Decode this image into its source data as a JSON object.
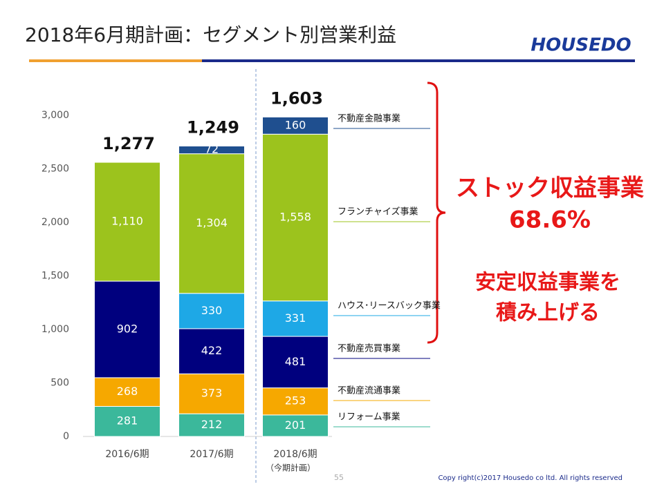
{
  "header": {
    "title": "2018年6月期計画：セグメント別営業利益",
    "logo": "HOUSEDO"
  },
  "chart_data": {
    "type": "stacked-bar",
    "categories": [
      "2016/6期",
      "2017/6期",
      "2018/6期"
    ],
    "category_note": "（今期計画）",
    "ylim": [
      0,
      3000
    ],
    "yticks": [
      0,
      500,
      {
        "value": 1000,
        "label": "1,000"
      },
      {
        "value": 1500,
        "label": "1,500"
      },
      {
        "value": 2000,
        "label": "2,000"
      },
      {
        "value": 2500,
        "label": "2,500"
      },
      {
        "value": 3000,
        "label": "3,000"
      }
    ],
    "series": [
      {
        "name": "リフォーム事業",
        "color": "#3bb89b",
        "values": [
          281,
          212,
          201
        ]
      },
      {
        "name": "不動産流通事業",
        "color": "#f6a800",
        "values": [
          268,
          373,
          253
        ]
      },
      {
        "name": "不動産売買事業",
        "color": "#00007e",
        "values": [
          902,
          422,
          481
        ]
      },
      {
        "name": "ハウス･リースバック事業",
        "color": "#1ea8e6",
        "values": [
          null,
          330,
          331
        ]
      },
      {
        "name": "フランチャイズ事業",
        "color": "#9cc31d",
        "values": [
          1110,
          1304,
          1558
        ],
        "value_labels": [
          "1,110",
          "1,304",
          "1,558"
        ]
      },
      {
        "name": "不動産金融事業",
        "color": "#1f4f8f",
        "values": [
          null,
          72,
          160
        ]
      }
    ],
    "totals": {
      "values": [
        1277,
        1249,
        1603
      ],
      "value_labels": [
        "1,277",
        "1,249",
        "1,603"
      ]
    },
    "annotations": [
      "ストック収益事業",
      "68.6%",
      "安定収益事業を",
      "積み上げる"
    ]
  },
  "footer": {
    "page": "55",
    "copyright": "Copy right(c)2017 Housedo co ltd. All rights reserved"
  }
}
